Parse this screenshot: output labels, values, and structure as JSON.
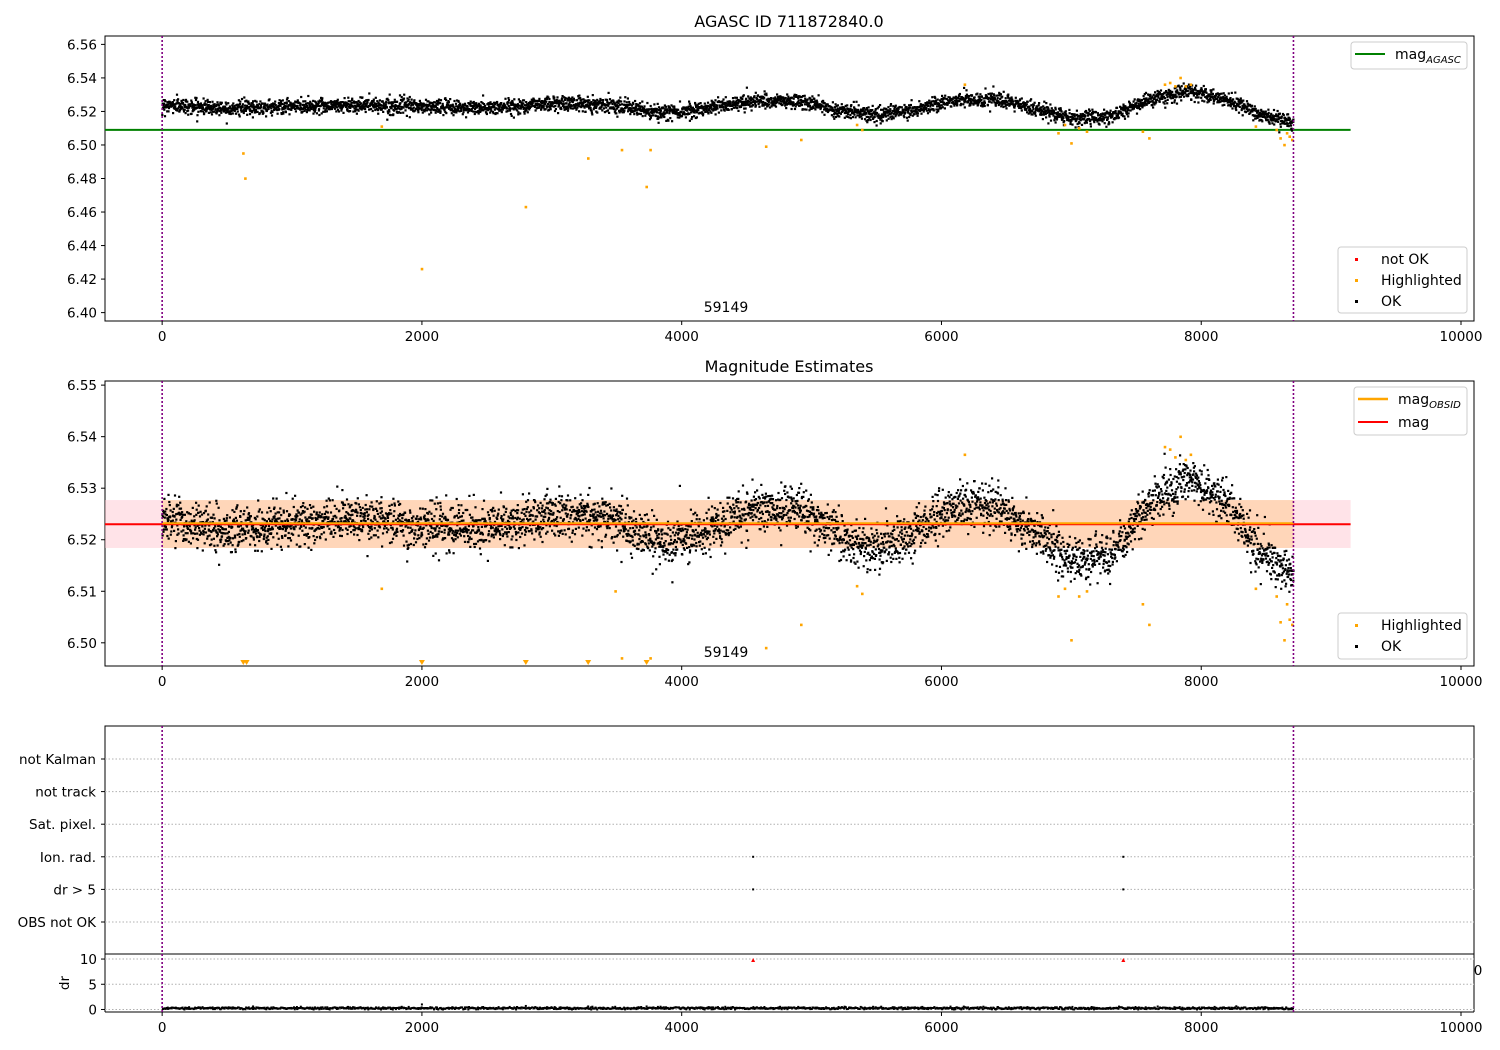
{
  "chart_data": [
    {
      "type": "scatter",
      "title": "AGASC ID 711872840.0",
      "annotation": "59149",
      "xlim": [
        -440,
        10100
      ],
      "ylim": [
        6.395,
        6.565
      ],
      "xticks": [
        0,
        2000,
        4000,
        6000,
        8000,
        10000
      ],
      "yticks": [
        "6.40",
        "6.42",
        "6.44",
        "6.46",
        "6.48",
        "6.50",
        "6.52",
        "6.54",
        "6.56"
      ],
      "vlines": [
        0,
        8710
      ],
      "reference_line": {
        "label_main": "mag",
        "label_sub": "AGASC",
        "value": 6.509,
        "x_range": [
          -440,
          9150
        ],
        "color": "#008000"
      },
      "legend": [
        {
          "label": "not OK",
          "color": "#ff0000"
        },
        {
          "label": "Highlighted",
          "color": "#ffa500"
        },
        {
          "label": "OK",
          "color": "#000000"
        }
      ],
      "series": [
        {
          "name": "OK",
          "color": "#000000",
          "x_range": [
            0,
            8710
          ],
          "trend": [
            [
              0,
              6.524
            ],
            [
              500,
              6.522
            ],
            [
              1000,
              6.523
            ],
            [
              1500,
              6.524
            ],
            [
              2000,
              6.523
            ],
            [
              2500,
              6.522
            ],
            [
              3000,
              6.525
            ],
            [
              3500,
              6.524
            ],
            [
              3800,
              6.519
            ],
            [
              4100,
              6.521
            ],
            [
              4500,
              6.526
            ],
            [
              4900,
              6.526
            ],
            [
              5200,
              6.521
            ],
            [
              5500,
              6.518
            ],
            [
              5800,
              6.521
            ],
            [
              6100,
              6.527
            ],
            [
              6400,
              6.527
            ],
            [
              6700,
              6.522
            ],
            [
              7000,
              6.516
            ],
            [
              7300,
              6.517
            ],
            [
              7600,
              6.527
            ],
            [
              7900,
              6.532
            ],
            [
              8200,
              6.527
            ],
            [
              8450,
              6.518
            ],
            [
              8710,
              6.513
            ]
          ],
          "spread": 0.0028
        },
        {
          "name": "Highlighted",
          "color": "#ffa500",
          "points": [
            [
              625,
              6.495
            ],
            [
              640,
              6.48
            ],
            [
              1690,
              6.511
            ],
            [
              2000,
              6.426
            ],
            [
              2800,
              6.463
            ],
            [
              3280,
              6.492
            ],
            [
              3540,
              6.497
            ],
            [
              3730,
              6.475
            ],
            [
              3760,
              6.497
            ],
            [
              4650,
              6.499
            ],
            [
              4920,
              6.503
            ],
            [
              5350,
              6.512
            ],
            [
              5390,
              6.509
            ],
            [
              6180,
              6.536
            ],
            [
              6900,
              6.507
            ],
            [
              6950,
              6.512
            ],
            [
              7000,
              6.501
            ],
            [
              7060,
              6.51
            ],
            [
              7120,
              6.508
            ],
            [
              7550,
              6.508
            ],
            [
              7600,
              6.504
            ],
            [
              7720,
              6.536
            ],
            [
              7760,
              6.537
            ],
            [
              7800,
              6.535
            ],
            [
              7840,
              6.54
            ],
            [
              7880,
              6.535
            ],
            [
              7920,
              6.536
            ],
            [
              8420,
              6.511
            ],
            [
              8580,
              6.509
            ],
            [
              8610,
              6.504
            ],
            [
              8640,
              6.5
            ],
            [
              8660,
              6.507
            ],
            [
              8680,
              6.505
            ],
            [
              8700,
              6.503
            ]
          ]
        },
        {
          "name": "not OK",
          "color": "#ff0000",
          "points": []
        }
      ]
    },
    {
      "type": "scatter",
      "title": "Magnitude Estimates",
      "annotation": "59149",
      "xlim": [
        -440,
        10100
      ],
      "ylim": [
        6.4955,
        6.5508
      ],
      "xticks": [
        0,
        2000,
        4000,
        6000,
        8000,
        10000
      ],
      "yticks": [
        "6.50",
        "6.51",
        "6.52",
        "6.53",
        "6.54",
        "6.55"
      ],
      "vlines": [
        0,
        8710
      ],
      "mean_line": {
        "label": "mag",
        "value": 6.523,
        "band": [
          6.5184,
          6.5277
        ],
        "x_range": [
          -440,
          9150
        ],
        "color": "#ff0000"
      },
      "obsid_line": {
        "label_main": "mag",
        "label_sub": "OBSID",
        "value": 6.523,
        "x_range": [
          0,
          8710
        ],
        "color": "#ffa500"
      },
      "legend_lines": [
        {
          "label": "mag",
          "sub": "OBSID",
          "color": "#ffa500"
        },
        {
          "label": "mag",
          "sub": "",
          "color": "#ff0000"
        }
      ],
      "legend": [
        {
          "label": "Highlighted",
          "color": "#ffa500"
        },
        {
          "label": "OK",
          "color": "#000000"
        }
      ],
      "series": [
        {
          "name": "OK",
          "color": "#000000",
          "x_range": [
            0,
            8710
          ],
          "trend": [
            [
              0,
              6.524
            ],
            [
              500,
              6.522
            ],
            [
              1000,
              6.523
            ],
            [
              1500,
              6.524
            ],
            [
              2000,
              6.523
            ],
            [
              2500,
              6.522
            ],
            [
              3000,
              6.525
            ],
            [
              3500,
              6.524
            ],
            [
              3800,
              6.519
            ],
            [
              4100,
              6.521
            ],
            [
              4500,
              6.526
            ],
            [
              4900,
              6.526
            ],
            [
              5200,
              6.521
            ],
            [
              5500,
              6.518
            ],
            [
              5800,
              6.521
            ],
            [
              6100,
              6.527
            ],
            [
              6400,
              6.527
            ],
            [
              6700,
              6.522
            ],
            [
              7000,
              6.516
            ],
            [
              7300,
              6.517
            ],
            [
              7600,
              6.527
            ],
            [
              7900,
              6.532
            ],
            [
              8200,
              6.527
            ],
            [
              8450,
              6.518
            ],
            [
              8710,
              6.513
            ]
          ],
          "spread": 0.0028
        },
        {
          "name": "Highlighted",
          "color": "#ffa500",
          "points": [
            [
              1690,
              6.5105
            ],
            [
              3490,
              6.51
            ],
            [
              3540,
              6.497
            ],
            [
              3760,
              6.497
            ],
            [
              4650,
              6.499
            ],
            [
              4920,
              6.5035
            ],
            [
              5350,
              6.511
            ],
            [
              5390,
              6.5095
            ],
            [
              6180,
              6.5365
            ],
            [
              6900,
              6.509
            ],
            [
              6950,
              6.5105
            ],
            [
              7000,
              6.5005
            ],
            [
              7060,
              6.509
            ],
            [
              7120,
              6.51
            ],
            [
              7550,
              6.5075
            ],
            [
              7600,
              6.5035
            ],
            [
              7720,
              6.538
            ],
            [
              7760,
              6.5375
            ],
            [
              7800,
              6.536
            ],
            [
              7840,
              6.54
            ],
            [
              7880,
              6.5355
            ],
            [
              7920,
              6.5365
            ],
            [
              8420,
              6.5105
            ],
            [
              8580,
              6.509
            ],
            [
              8610,
              6.504
            ],
            [
              8640,
              6.5005
            ],
            [
              8660,
              6.5075
            ],
            [
              8680,
              6.5045
            ],
            [
              8700,
              6.5035
            ]
          ]
        },
        {
          "name": "Highlighted (below range)",
          "color": "#ffa500",
          "marker": "triangle-down",
          "x": [
            625,
            650,
            2000,
            2800,
            3280,
            3730
          ]
        }
      ]
    },
    {
      "type": "scatter",
      "title": "",
      "xlim": [
        -440,
        10100
      ],
      "categories": [
        "not Kalman",
        "not track",
        "Sat. pixel.",
        "Ion. rad.",
        "dr > 5",
        "OBS not OK"
      ],
      "vlines": [
        0,
        8710
      ],
      "series": [
        {
          "category": "Ion. rad.",
          "color": "#000000",
          "x": [
            4550,
            7400
          ]
        },
        {
          "category": "dr > 5",
          "color": "#000000",
          "x": [
            4550,
            7400
          ]
        }
      ]
    },
    {
      "type": "scatter",
      "title": "",
      "ylabel": "dr",
      "xlim": [
        -440,
        10100
      ],
      "ylim": [
        -0.5,
        11
      ],
      "xticks": [
        0,
        2000,
        4000,
        6000,
        8000,
        10000
      ],
      "yticks": [
        "0",
        "5",
        "10"
      ],
      "overflow_tick_label": "0",
      "vlines": [
        0,
        8710
      ],
      "series": [
        {
          "name": "dr",
          "color": "#000000",
          "x_range": [
            0,
            8710
          ],
          "typical": 0.25,
          "spread": 0.12,
          "bumps": [
            [
              2000,
              1.0
            ],
            [
              2800,
              0.7
            ],
            [
              3280,
              0.6
            ],
            [
              3730,
              0.6
            ],
            [
              700,
              0.6
            ]
          ]
        },
        {
          "name": "dr outliers",
          "color": "#ff0000",
          "marker": "triangle-up",
          "points": [
            [
              4550,
              9.8
            ],
            [
              7400,
              9.8
            ]
          ]
        }
      ]
    }
  ]
}
